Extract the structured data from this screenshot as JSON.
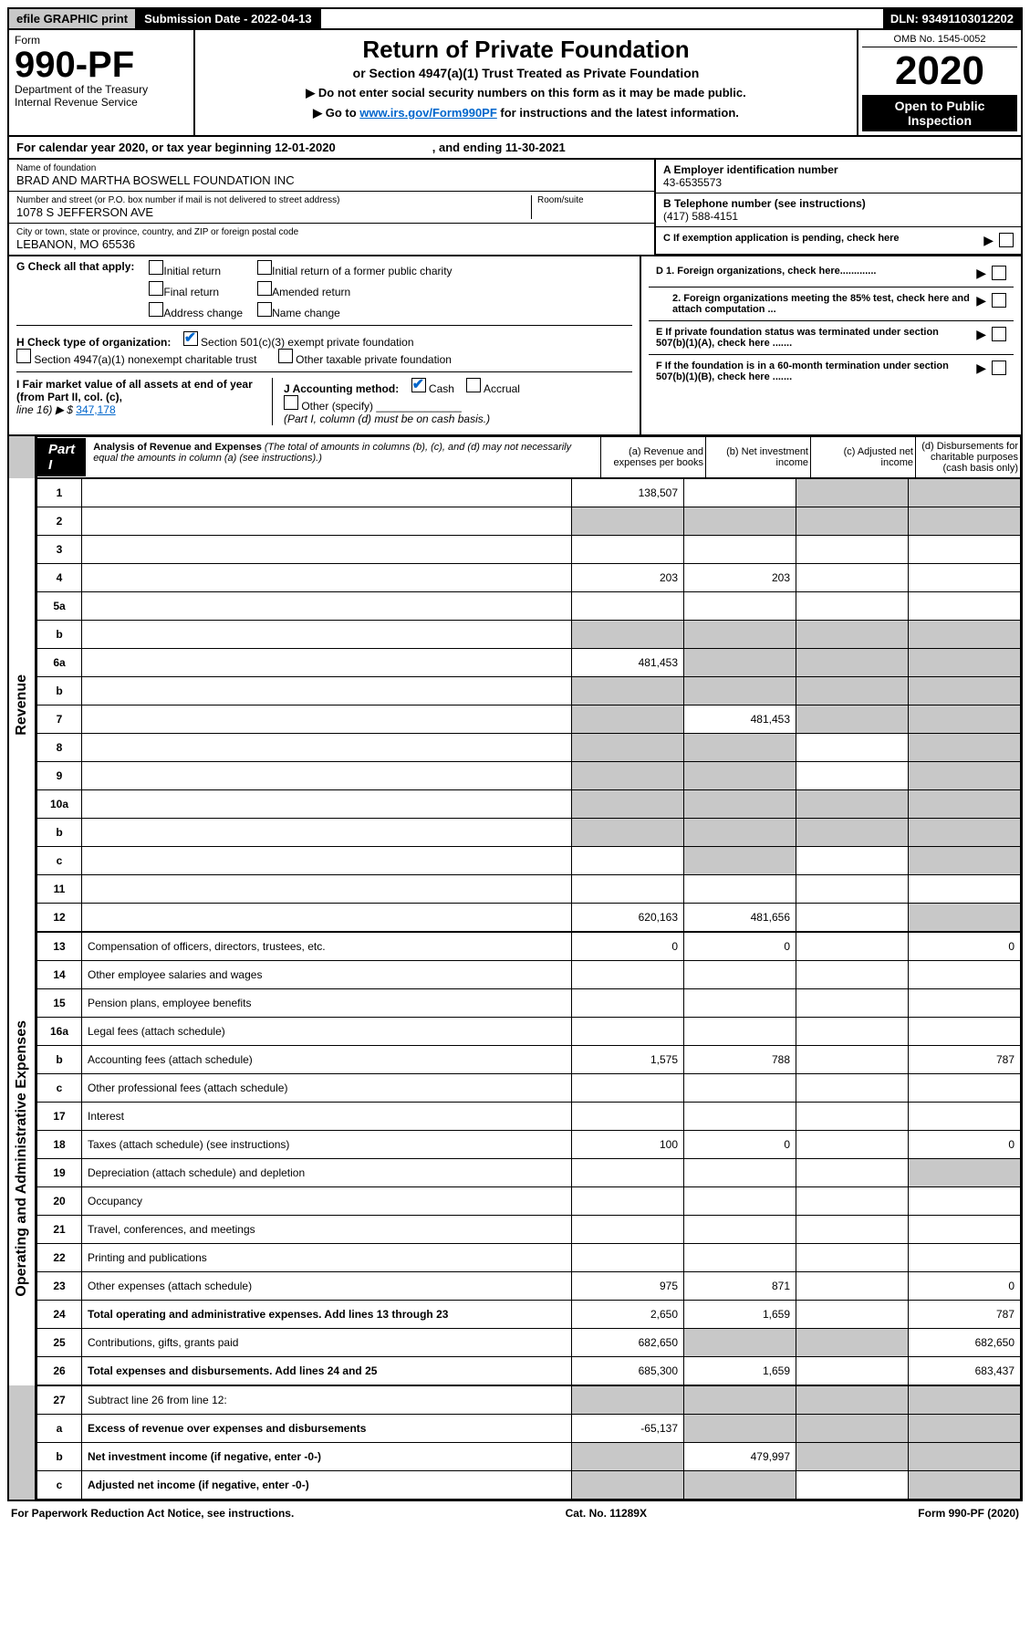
{
  "topbar": {
    "efile": "efile GRAPHIC print",
    "sub_label": "Submission Date - 2022-04-13",
    "dln": "DLN: 93491103012202"
  },
  "header": {
    "form_label": "Form",
    "form_no": "990-PF",
    "dept": "Department of the Treasury",
    "irs": "Internal Revenue Service",
    "title": "Return of Private Foundation",
    "subtitle": "or Section 4947(a)(1) Trust Treated as Private Foundation",
    "note1": "▶ Do not enter social security numbers on this form as it may be made public.",
    "note2_pre": "▶ Go to ",
    "note2_link": "www.irs.gov/Form990PF",
    "note2_post": " for instructions and the latest information.",
    "omb": "OMB No. 1545-0052",
    "year": "2020",
    "open": "Open to Public Inspection"
  },
  "calyear": {
    "text": "For calendar year 2020, or tax year beginning 12-01-2020",
    "ending": ", and ending 11-30-2021"
  },
  "foundation": {
    "name_label": "Name of foundation",
    "name": "BRAD AND MARTHA BOSWELL FOUNDATION INC",
    "addr_label": "Number and street (or P.O. box number if mail is not delivered to street address)",
    "addr": "1078 S JEFFERSON AVE",
    "room_label": "Room/suite",
    "city_label": "City or town, state or province, country, and ZIP or foreign postal code",
    "city": "LEBANON, MO  65536"
  },
  "identifiers": {
    "a_label": "A Employer identification number",
    "a_value": "43-6535573",
    "b_label": "B Telephone number (see instructions)",
    "b_value": "(417) 588-4151",
    "c_label": "C If exemption application is pending, check here",
    "d1_label": "D 1. Foreign organizations, check here.............",
    "d2_label": "2. Foreign organizations meeting the 85% test, check here and attach computation ...",
    "e_label": "E  If private foundation status was terminated under section 507(b)(1)(A), check here .......",
    "f_label": "F  If the foundation is in a 60-month termination under section 507(b)(1)(B), check here ......."
  },
  "g": {
    "label": "G Check all that apply:",
    "opts": [
      "Initial return",
      "Final return",
      "Address change",
      "Initial return of a former public charity",
      "Amended return",
      "Name change"
    ]
  },
  "h": {
    "label": "H Check type of organization:",
    "opt1": "Section 501(c)(3) exempt private foundation",
    "opt2": "Section 4947(a)(1) nonexempt charitable trust",
    "opt3": "Other taxable private foundation"
  },
  "i": {
    "label": "I Fair market value of all assets at end of year (from Part II, col. (c),",
    "line": "line 16) ▶ $",
    "value": "347,178"
  },
  "j": {
    "label": "J Accounting method:",
    "cash": "Cash",
    "accrual": "Accrual",
    "other": "Other (specify)",
    "note": "(Part I, column (d) must be on cash basis.)"
  },
  "part1": {
    "label": "Part I",
    "title": "Analysis of Revenue and Expenses",
    "note": " (The total of amounts in columns (b), (c), and (d) may not necessarily equal the amounts in column (a) (see instructions).)",
    "col_a": "(a)    Revenue and expenses per books",
    "col_b": "(b)    Net investment income",
    "col_c": "(c)   Adjusted net income",
    "col_d": "(d)   Disbursements for charitable purposes (cash basis only)"
  },
  "sections": {
    "revenue": "Revenue",
    "opex": "Operating and Administrative Expenses"
  },
  "rows": [
    {
      "n": "1",
      "d": "",
      "a": "138,507",
      "b": "",
      "c": "",
      "shade": [
        "c",
        "d"
      ]
    },
    {
      "n": "2",
      "d": "",
      "a": "",
      "b": "",
      "c": "",
      "shade": [
        "a",
        "b",
        "c",
        "d"
      ]
    },
    {
      "n": "3",
      "d": "",
      "a": "",
      "b": "",
      "c": ""
    },
    {
      "n": "4",
      "d": "",
      "a": "203",
      "b": "203",
      "c": ""
    },
    {
      "n": "5a",
      "d": "",
      "a": "",
      "b": "",
      "c": ""
    },
    {
      "n": "b",
      "d": "",
      "a": "",
      "b": "",
      "c": "",
      "shade": [
        "a",
        "b",
        "c",
        "d"
      ]
    },
    {
      "n": "6a",
      "d": "",
      "a": "481,453",
      "b": "",
      "c": "",
      "shade": [
        "b",
        "c",
        "d"
      ]
    },
    {
      "n": "b",
      "d": "",
      "a": "",
      "b": "",
      "c": "",
      "shade": [
        "a",
        "b",
        "c",
        "d"
      ]
    },
    {
      "n": "7",
      "d": "",
      "a": "",
      "b": "481,453",
      "c": "",
      "shade": [
        "a",
        "c",
        "d"
      ]
    },
    {
      "n": "8",
      "d": "",
      "a": "",
      "b": "",
      "c": "",
      "shade": [
        "a",
        "b",
        "d"
      ]
    },
    {
      "n": "9",
      "d": "",
      "a": "",
      "b": "",
      "c": "",
      "shade": [
        "a",
        "b",
        "d"
      ]
    },
    {
      "n": "10a",
      "d": "",
      "a": "",
      "b": "",
      "c": "",
      "shade": [
        "a",
        "b",
        "c",
        "d"
      ]
    },
    {
      "n": "b",
      "d": "",
      "a": "",
      "b": "",
      "c": "",
      "shade": [
        "a",
        "b",
        "c",
        "d"
      ]
    },
    {
      "n": "c",
      "d": "",
      "a": "",
      "b": "",
      "c": "",
      "shade": [
        "b",
        "d"
      ]
    },
    {
      "n": "11",
      "d": "",
      "a": "",
      "b": "",
      "c": ""
    },
    {
      "n": "12",
      "d": "",
      "a": "620,163",
      "b": "481,656",
      "c": "",
      "bold": true,
      "shade": [
        "d"
      ]
    }
  ],
  "opex_rows": [
    {
      "n": "13",
      "d": "0",
      "a": "0",
      "b": "0",
      "c": ""
    },
    {
      "n": "14",
      "d": "",
      "a": "",
      "b": "",
      "c": ""
    },
    {
      "n": "15",
      "d": "",
      "a": "",
      "b": "",
      "c": ""
    },
    {
      "n": "16a",
      "d": "",
      "a": "",
      "b": "",
      "c": ""
    },
    {
      "n": "b",
      "d": "787",
      "a": "1,575",
      "b": "788",
      "c": ""
    },
    {
      "n": "c",
      "d": "",
      "a": "",
      "b": "",
      "c": ""
    },
    {
      "n": "17",
      "d": "",
      "a": "",
      "b": "",
      "c": ""
    },
    {
      "n": "18",
      "d": "0",
      "a": "100",
      "b": "0",
      "c": ""
    },
    {
      "n": "19",
      "d": "",
      "a": "",
      "b": "",
      "c": "",
      "shade": [
        "d"
      ]
    },
    {
      "n": "20",
      "d": "",
      "a": "",
      "b": "",
      "c": ""
    },
    {
      "n": "21",
      "d": "",
      "a": "",
      "b": "",
      "c": ""
    },
    {
      "n": "22",
      "d": "",
      "a": "",
      "b": "",
      "c": ""
    },
    {
      "n": "23",
      "d": "0",
      "a": "975",
      "b": "871",
      "c": ""
    },
    {
      "n": "24",
      "d": "787",
      "a": "2,650",
      "b": "1,659",
      "c": "",
      "bold": true
    },
    {
      "n": "25",
      "d": "682,650",
      "a": "682,650",
      "b": "",
      "c": "",
      "shade": [
        "b",
        "c"
      ]
    },
    {
      "n": "26",
      "d": "683,437",
      "a": "685,300",
      "b": "1,659",
      "c": "",
      "bold": true
    }
  ],
  "bottom_rows": [
    {
      "n": "27",
      "d": "",
      "a": "",
      "b": "",
      "c": "",
      "shade": [
        "a",
        "b",
        "c",
        "d"
      ]
    },
    {
      "n": "a",
      "d": "",
      "a": "-65,137",
      "b": "",
      "c": "",
      "bold": true,
      "shade": [
        "b",
        "c",
        "d"
      ]
    },
    {
      "n": "b",
      "d": "",
      "a": "",
      "b": "479,997",
      "c": "",
      "bold": true,
      "shade": [
        "a",
        "c",
        "d"
      ]
    },
    {
      "n": "c",
      "d": "",
      "a": "",
      "b": "",
      "c": "",
      "bold": true,
      "shade": [
        "a",
        "b",
        "d"
      ]
    }
  ],
  "footer": {
    "left": "For Paperwork Reduction Act Notice, see instructions.",
    "cat": "Cat. No. 11289X",
    "right": "Form 990-PF (2020)"
  },
  "colors": {
    "shade": "#c8c8c8",
    "link": "#0066cc"
  }
}
